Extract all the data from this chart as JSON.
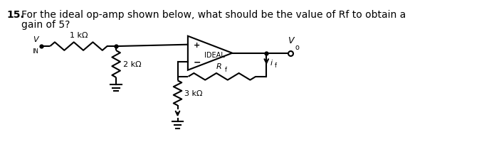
{
  "bg_color": "#ffffff",
  "line_color": "#000000",
  "label_vin": "V",
  "label_vin_sub": "IN",
  "label_vo": "V",
  "label_vo_sub": "o",
  "label_1k": "1 kΩ",
  "label_2k": "2 kΩ",
  "label_3k": "3 kΩ",
  "label_rf": "R",
  "label_rf_sub": "f",
  "label_deal": "IDEAL",
  "label_if": "i",
  "label_if_sub": "f",
  "title_num": "15.",
  "title_rest": "For the ideal op-amp shown below, what should be the value of Rf to obtain a",
  "title_line2": "gain of 5?"
}
